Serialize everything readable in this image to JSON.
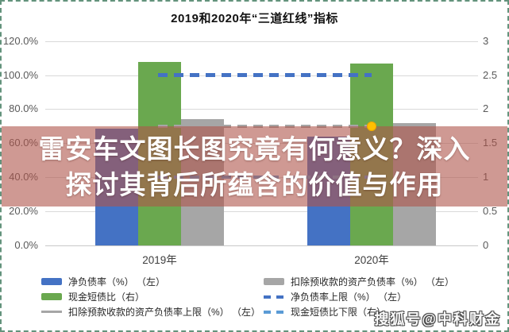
{
  "overlay": {
    "lines": [
      "雷安车文图长图究竟有何意义？深入",
      "探讨其背后所蕴含的价值与作用"
    ]
  },
  "watermark": {
    "text": "搜狐号@中科财金"
  },
  "colors": {
    "blue": "#4472c4",
    "green": "#6aa84f",
    "gray": "#a6a6a6",
    "light_blue": "#5b9bd5",
    "yellow": "#ffc000",
    "grid": "#d9d9d9",
    "overlay_bg": "rgba(175,85,75,0.60)",
    "border_green": "#63937c"
  },
  "chart_data": {
    "type": "bar",
    "title": "2019和2020年“三道红线”指标",
    "categories": [
      "2019年",
      "2020年"
    ],
    "left_axis": {
      "label": "",
      "ticks": [
        "120.0%",
        "100.0%",
        "80.0%",
        "60.0%",
        "40.0%",
        "20.0%",
        "0.0%"
      ],
      "values": [
        120,
        100,
        80,
        60,
        40,
        20,
        0
      ],
      "max": 120,
      "unit": "%"
    },
    "right_axis": {
      "label": "",
      "ticks": [
        "3",
        "2.5",
        "2",
        "1.5",
        "1",
        "0.5",
        "0"
      ],
      "values": [
        3,
        2.5,
        2,
        1.5,
        1,
        0.5,
        0
      ],
      "max": 3
    },
    "grid": true,
    "series": [
      {
        "id": "net-debt-ratio",
        "name": "净负债率（%）（左）",
        "axis": "left",
        "color_key": "blue",
        "values": [
          68.6,
          63.7
        ]
      },
      {
        "id": "cash-short-debt-ratio",
        "name": "现金短债比（右）",
        "axis": "right",
        "color_key": "green",
        "values": [
          2.69,
          2.67
        ]
      },
      {
        "id": "asset-liability-ratio",
        "name": "扣除预收款的资产负债率（%）（左）",
        "axis": "left",
        "color_key": "gray",
        "values": [
          74.3,
          71.6
        ]
      }
    ],
    "limit_lines": [
      {
        "id": "net-debt-cap",
        "name": "净负债率上限（%）（左）",
        "axis": "left",
        "value": 100,
        "color_key": "blue",
        "thickness": 5
      },
      {
        "id": "asset-liability-cap",
        "name": "扣除预款收款的资产负债率上限（%）（左）",
        "axis": "left",
        "value": 70,
        "color_key": "gray",
        "thickness": 4,
        "end_marker_color_key": "yellow"
      },
      {
        "id": "cash-short-debt-floor",
        "name": "现金短债比下限（右）",
        "axis": "right",
        "value": 1,
        "color_key": "light_blue",
        "thickness": 4
      }
    ],
    "legend": [
      {
        "label": "净负债率（%） （左）",
        "marker": "bar",
        "color_key": "blue"
      },
      {
        "label": "现金短债比（右）",
        "marker": "bar",
        "color_key": "green"
      },
      {
        "label": "扣除预款收款的资产负债率上限（%） （左）",
        "marker": "line",
        "color_key": "gray"
      },
      {
        "label": "扣除预收款的资产负债率（%） （左）",
        "marker": "bar",
        "color_key": "gray"
      },
      {
        "label": "净负债率上限（%） （左）",
        "marker": "dash",
        "color_key": "blue"
      },
      {
        "label": "现金短债比下限（右）",
        "marker": "dash",
        "color_key": "light_blue"
      }
    ],
    "legend_position": "bottom"
  }
}
